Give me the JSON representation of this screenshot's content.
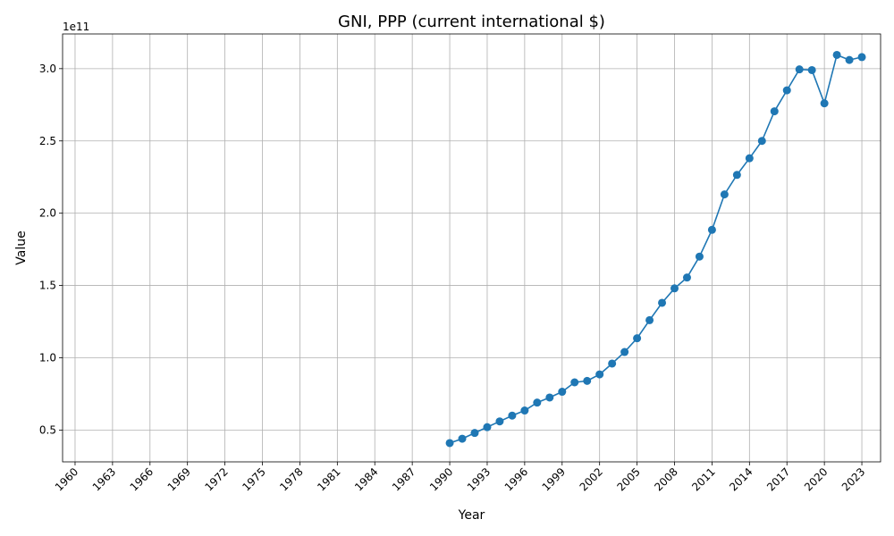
{
  "chart_data": {
    "type": "line",
    "title": "GNI, PPP (current international $)",
    "xlabel": "Year",
    "ylabel": "Value",
    "offset_label": "1e11",
    "grid": true,
    "color": "#1f77b4",
    "xlim": [
      1959,
      2024.5
    ],
    "ylim": [
      0.28,
      3.24
    ],
    "x_ticks": [
      1960,
      1963,
      1966,
      1969,
      1972,
      1975,
      1978,
      1981,
      1984,
      1987,
      1990,
      1993,
      1996,
      1999,
      2002,
      2005,
      2008,
      2011,
      2014,
      2017,
      2020,
      2023
    ],
    "y_ticks": [
      0.5,
      1.0,
      1.5,
      2.0,
      2.5,
      3.0
    ],
    "y_tick_labels": [
      "0.5",
      "1.0",
      "1.5",
      "2.0",
      "2.5",
      "3.0"
    ],
    "series": [
      {
        "x": [
          1990,
          1991,
          1992,
          1993,
          1994,
          1995,
          1996,
          1997,
          1998,
          1999,
          2000,
          2001,
          2002,
          2003,
          2004,
          2005,
          2006,
          2007,
          2008,
          2009,
          2010,
          2011,
          2012,
          2013,
          2014,
          2015,
          2016,
          2017,
          2018,
          2019,
          2020,
          2021,
          2022,
          2023
        ],
        "values": [
          0.41,
          0.44,
          0.48,
          0.52,
          0.56,
          0.6,
          0.635,
          0.69,
          0.725,
          0.765,
          0.83,
          0.84,
          0.885,
          0.96,
          1.04,
          1.135,
          1.26,
          1.38,
          1.48,
          1.555,
          1.7,
          1.885,
          2.13,
          2.265,
          2.38,
          2.5,
          2.705,
          2.85,
          2.995,
          2.99,
          2.76,
          3.095,
          3.06,
          3.08
        ]
      }
    ]
  }
}
